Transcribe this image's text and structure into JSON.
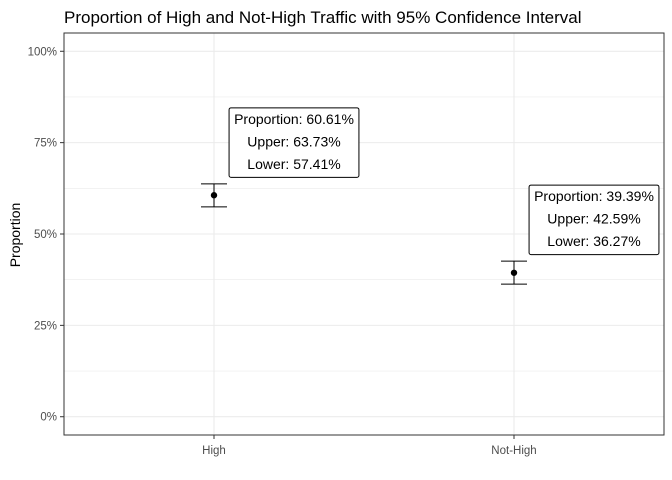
{
  "chart_data": {
    "type": "errorbar",
    "title": "Proportion of High and Not-High Traffic with 95% Confidence Interval",
    "xlabel": "",
    "ylabel": "Proportion",
    "categories": [
      "High",
      "Not-High"
    ],
    "values": [
      0.6061,
      0.3939
    ],
    "upper": [
      0.6373,
      0.4259
    ],
    "lower": [
      0.5741,
      0.3627
    ],
    "ylim": [
      -0.05,
      1.05
    ],
    "yticks": [
      0,
      0.25,
      0.5,
      0.75,
      1.0
    ],
    "ytick_labels": [
      "0%",
      "25%",
      "50%",
      "75%",
      "100%"
    ],
    "grid": true,
    "annotations": [
      [
        "Proportion: 60.61%",
        "Upper: 63.73%",
        "Lower: 57.41%"
      ],
      [
        "Proportion: 39.39%",
        "Upper: 42.59%",
        "Lower: 36.27%"
      ]
    ],
    "colors": {
      "point": "#000000",
      "grid": "#ebebeb",
      "panel_border": "#333333",
      "tick_text": "#4d4d4d"
    }
  }
}
